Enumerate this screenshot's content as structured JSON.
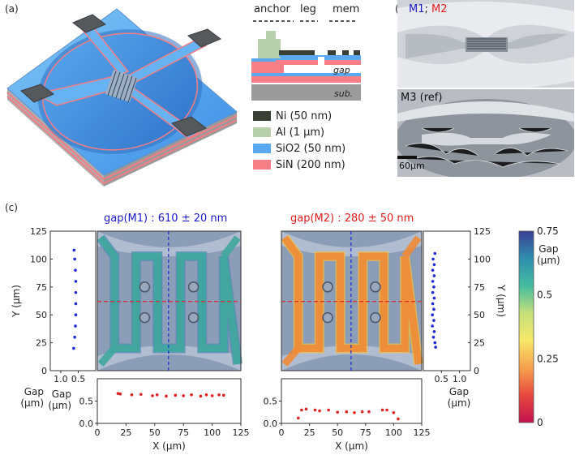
{
  "panel_labels": {
    "a": "(a)",
    "b": "(b)",
    "c": "(c)"
  },
  "stack": {
    "columns": [
      "anchor",
      "leg",
      "mem"
    ],
    "gap_label": "gap",
    "sub_label": "sub.",
    "legend": [
      {
        "label": "Ni (50 nm)",
        "color": "#3a3f33"
      },
      {
        "label": "Al (1 μm)",
        "color": "#b8cfae"
      },
      {
        "label": "SiO2 (50 nm)",
        "color": "#5aa8ef"
      },
      {
        "label": "SiN (200 nm)",
        "color": "#f77f85"
      }
    ]
  },
  "sem": {
    "top_label_m1": "M1",
    "top_label_sep": ";",
    "top_label_m2": "M2",
    "bottom_label": "M3 (ref)",
    "scale_bar": "60μm"
  },
  "colorbar": {
    "title_line1": "Gap",
    "title_line2": "(μm)",
    "ticks": [
      "0.75",
      "0.5",
      "0.25",
      "0"
    ],
    "colors": [
      "#3b3f95",
      "#2e8fae",
      "#45bca0",
      "#c6e07a",
      "#f7e86a",
      "#f5a04c",
      "#e8493f",
      "#c2124f"
    ]
  },
  "chart_data": [
    {
      "type": "scatter",
      "title": "gap(M1) : 610 ± 20 nm",
      "title_color": "#1a1acc",
      "xlabel": "X (μm)",
      "ylabel": "Y (μm)",
      "xlim": [
        0,
        125
      ],
      "ylim": [
        0,
        125
      ],
      "x_ticks": [
        "0",
        "25",
        "50",
        "75",
        "100",
        "125"
      ],
      "y_ticks": [
        "125",
        "100",
        "75",
        "50",
        "25",
        "0"
      ],
      "side_profile": {
        "xlabel": "Gap (μm)",
        "ticks": [
          "1.0",
          "0.5"
        ],
        "xlim": [
          1.3,
          0.0
        ],
        "points": [
          [
            0.62,
            108
          ],
          [
            0.6,
            100
          ],
          [
            0.58,
            90
          ],
          [
            0.57,
            80
          ],
          [
            0.57,
            70
          ],
          [
            0.57,
            60
          ],
          [
            0.57,
            50
          ],
          [
            0.58,
            40
          ],
          [
            0.6,
            30
          ],
          [
            0.63,
            20
          ]
        ]
      },
      "bottom_profile": {
        "ylabel": "Gap (μm)",
        "ticks": [
          "0.5",
          "0.0"
        ],
        "ylim": [
          0,
          1.0
        ],
        "points": [
          [
            18,
            0.67
          ],
          [
            20,
            0.66
          ],
          [
            30,
            0.64
          ],
          [
            38,
            0.65
          ],
          [
            48,
            0.62
          ],
          [
            52,
            0.64
          ],
          [
            60,
            0.61
          ],
          [
            68,
            0.63
          ],
          [
            75,
            0.62
          ],
          [
            82,
            0.64
          ],
          [
            90,
            0.61
          ],
          [
            95,
            0.64
          ],
          [
            100,
            0.62
          ],
          [
            106,
            0.64
          ],
          [
            110,
            0.63
          ]
        ]
      }
    },
    {
      "type": "scatter",
      "title": "gap(M2) : 280 ± 50 nm",
      "title_color": "#e31a1a",
      "xlabel": "X (μm)",
      "ylabel": "Y (μm)",
      "xlim": [
        0,
        125
      ],
      "ylim": [
        0,
        125
      ],
      "x_ticks": [
        "0",
        "25",
        "50",
        "75",
        "100",
        "125"
      ],
      "y_ticks": [
        "125",
        "100",
        "75",
        "50",
        "25",
        "0"
      ],
      "side_profile": {
        "xlabel": "Gap (μm)",
        "ticks": [
          "0.5",
          "1.0"
        ],
        "xlim": [
          0.0,
          1.3
        ],
        "points": [
          [
            0.32,
            105
          ],
          [
            0.27,
            100
          ],
          [
            0.3,
            95
          ],
          [
            0.26,
            90
          ],
          [
            0.3,
            85
          ],
          [
            0.26,
            80
          ],
          [
            0.29,
            75
          ],
          [
            0.26,
            70
          ],
          [
            0.3,
            65
          ],
          [
            0.26,
            60
          ],
          [
            0.29,
            55
          ],
          [
            0.25,
            50
          ],
          [
            0.29,
            45
          ],
          [
            0.25,
            40
          ],
          [
            0.3,
            35
          ],
          [
            0.28,
            30
          ],
          [
            0.32,
            25
          ],
          [
            0.34,
            21
          ]
        ]
      },
      "bottom_profile": {
        "ylabel": "Gap (μm)",
        "ticks": [
          "0.5",
          "0.0"
        ],
        "ylim": [
          0,
          1.0
        ],
        "points": [
          [
            15,
            0.12
          ],
          [
            18,
            0.3
          ],
          [
            22,
            0.32
          ],
          [
            30,
            0.3
          ],
          [
            34,
            0.28
          ],
          [
            42,
            0.3
          ],
          [
            50,
            0.25
          ],
          [
            58,
            0.26
          ],
          [
            65,
            0.24
          ],
          [
            72,
            0.26
          ],
          [
            78,
            0.26
          ],
          [
            90,
            0.3
          ],
          [
            94,
            0.3
          ],
          [
            100,
            0.24
          ],
          [
            104,
            0.1
          ]
        ]
      }
    }
  ]
}
